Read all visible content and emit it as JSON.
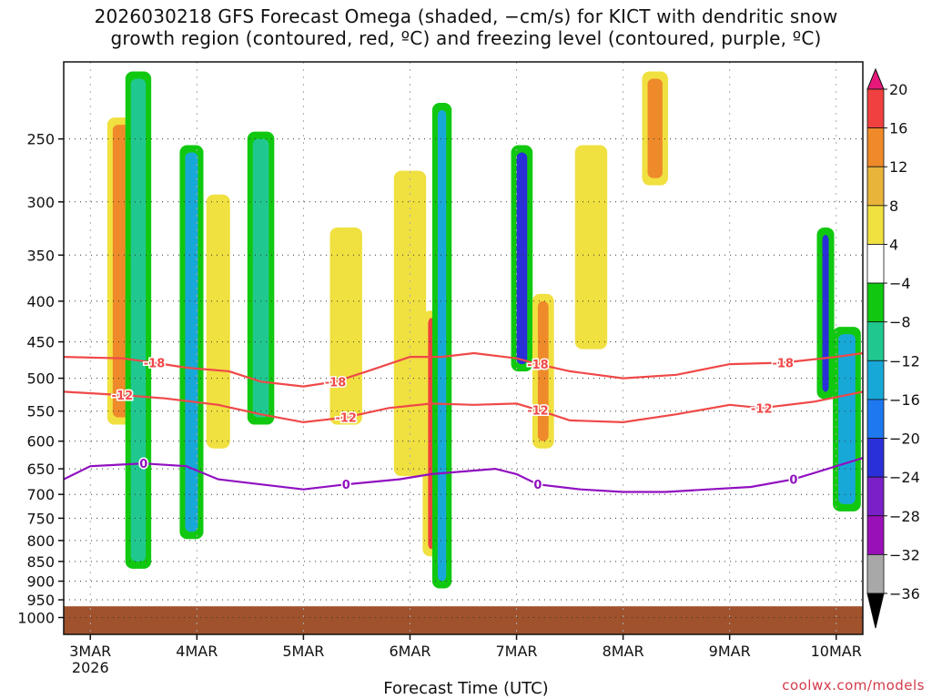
{
  "title_lines": [
    "2026030218 GFS Forecast Omega (shaded, −cm/s) for KICT with dendritic snow",
    "growth region (contoured, red, ºC) and freezing level (contoured, purple, ºC)"
  ],
  "credit": "coolwx.com/models",
  "chart_data": {
    "type": "heatmap",
    "xlabel": "Forecast Time (UTC)",
    "ylabel": "",
    "x_tick_labels": [
      "3MAR",
      "4MAR",
      "5MAR",
      "6MAR",
      "7MAR",
      "8MAR",
      "9MAR",
      "10MAR"
    ],
    "x_year_label": "2026",
    "x_range_days": [
      -0.25,
      7.25
    ],
    "y_tick_labels": [
      250,
      300,
      350,
      400,
      450,
      500,
      550,
      600,
      650,
      700,
      750,
      800,
      850,
      900,
      950,
      1000
    ],
    "y_range_hpa": [
      200,
      1050
    ],
    "y_scale": "log-pressure",
    "grid": true,
    "colorbar": {
      "labels": [
        "20",
        "16",
        "12",
        "8",
        "4",
        "−4",
        "−8",
        "−12",
        "−16",
        "−20",
        "−24",
        "−28",
        "−32",
        "−36"
      ],
      "colors": [
        "#e8187a",
        "#f04040",
        "#ef8a2a",
        "#e8b43a",
        "#f0e040",
        "#ffffff",
        "#10c810",
        "#20c890",
        "#18a8d8",
        "#1e78f0",
        "#2a30d8",
        "#7a20c8",
        "#9a10b8",
        "#a8a8a8",
        "#000000"
      ]
    },
    "contours": [
      {
        "label": "-18",
        "color": "#f04848",
        "points": [
          [
            -0.25,
            470
          ],
          [
            0.3,
            472
          ],
          [
            0.6,
            478
          ],
          [
            0.9,
            485
          ],
          [
            1.3,
            490
          ],
          [
            1.6,
            505
          ],
          [
            2.0,
            512
          ],
          [
            2.3,
            505
          ],
          [
            2.6,
            490
          ],
          [
            3.0,
            470
          ],
          [
            3.3,
            470
          ],
          [
            3.6,
            465
          ],
          [
            4.0,
            472
          ],
          [
            4.2,
            480
          ],
          [
            4.5,
            490
          ],
          [
            5.0,
            500
          ],
          [
            5.5,
            495
          ],
          [
            6.0,
            480
          ],
          [
            6.5,
            478
          ],
          [
            7.0,
            470
          ],
          [
            7.25,
            465
          ]
        ]
      },
      {
        "label": "-12",
        "color": "#f04848",
        "points": [
          [
            -0.25,
            520
          ],
          [
            0.3,
            525
          ],
          [
            0.7,
            530
          ],
          [
            1.2,
            540
          ],
          [
            1.6,
            555
          ],
          [
            2.0,
            568
          ],
          [
            2.4,
            560
          ],
          [
            2.8,
            545
          ],
          [
            3.2,
            538
          ],
          [
            3.6,
            540
          ],
          [
            4.0,
            538
          ],
          [
            4.2,
            548
          ],
          [
            4.5,
            565
          ],
          [
            5.0,
            568
          ],
          [
            5.5,
            555
          ],
          [
            6.0,
            540
          ],
          [
            6.3,
            545
          ],
          [
            6.8,
            535
          ],
          [
            7.25,
            520
          ]
        ]
      },
      {
        "label": "0",
        "color": "#9010c0",
        "points": [
          [
            -0.25,
            670
          ],
          [
            0.0,
            645
          ],
          [
            0.5,
            640
          ],
          [
            0.9,
            645
          ],
          [
            1.2,
            670
          ],
          [
            1.6,
            680
          ],
          [
            2.0,
            690
          ],
          [
            2.4,
            680
          ],
          [
            2.9,
            670
          ],
          [
            3.2,
            660
          ],
          [
            3.5,
            655
          ],
          [
            3.8,
            650
          ],
          [
            4.0,
            660
          ],
          [
            4.2,
            680
          ],
          [
            4.6,
            690
          ],
          [
            5.0,
            695
          ],
          [
            5.4,
            695
          ],
          [
            5.8,
            690
          ],
          [
            6.2,
            685
          ],
          [
            6.6,
            670
          ],
          [
            7.0,
            645
          ],
          [
            7.25,
            630
          ]
        ]
      }
    ],
    "omega_features": [
      {
        "day": 0.3,
        "width": 0.18,
        "p_top": 240,
        "p_bot": 560,
        "value": 14
      },
      {
        "day": 0.45,
        "width": 0.14,
        "p_top": 210,
        "p_bot": 850,
        "value": -8
      },
      {
        "day": 0.95,
        "width": 0.12,
        "p_top": 260,
        "p_bot": 780,
        "value": -14
      },
      {
        "day": 1.2,
        "width": 0.12,
        "p_top": 300,
        "p_bot": 600,
        "value": 8
      },
      {
        "day": 1.6,
        "width": 0.15,
        "p_top": 250,
        "p_bot": 560,
        "value": -10
      },
      {
        "day": 2.4,
        "width": 0.2,
        "p_top": 330,
        "p_bot": 560,
        "value": 6
      },
      {
        "day": 3.0,
        "width": 0.2,
        "p_top": 280,
        "p_bot": 650,
        "value": 6
      },
      {
        "day": 3.2,
        "width": 0.06,
        "p_top": 420,
        "p_bot": 820,
        "value": 20
      },
      {
        "day": 3.3,
        "width": 0.08,
        "p_top": 230,
        "p_bot": 900,
        "value": -14
      },
      {
        "day": 4.05,
        "width": 0.1,
        "p_top": 260,
        "p_bot": 480,
        "value": -22
      },
      {
        "day": 4.25,
        "width": 0.1,
        "p_top": 400,
        "p_bot": 600,
        "value": 14
      },
      {
        "day": 4.7,
        "width": 0.2,
        "p_top": 260,
        "p_bot": 450,
        "value": 6
      },
      {
        "day": 5.3,
        "width": 0.14,
        "p_top": 210,
        "p_bot": 280,
        "value": 14
      },
      {
        "day": 6.9,
        "width": 0.06,
        "p_top": 330,
        "p_bot": 520,
        "value": -22
      },
      {
        "day": 7.1,
        "width": 0.16,
        "p_top": 440,
        "p_bot": 720,
        "value": -12
      }
    ]
  }
}
